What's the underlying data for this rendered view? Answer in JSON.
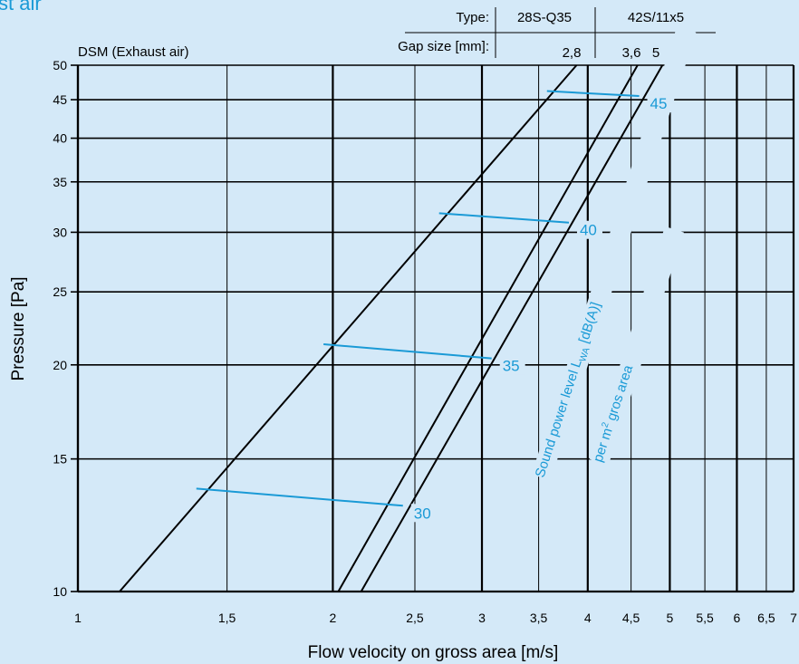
{
  "page_title_fragment": "st air",
  "header": {
    "type_label": "Type:",
    "type_values": [
      "28S-Q35",
      "42S/11x5"
    ],
    "gap_label": "Gap size [mm]:",
    "gap_values": [
      "2,8",
      "3,6",
      "5"
    ]
  },
  "chart_data": {
    "type": "line",
    "title": "DSM (Exhaust air)",
    "xlabel": "Flow velocity on gross area [m/s]",
    "ylabel": "Pressure [Pa]",
    "x_scale": "log",
    "y_scale": "log",
    "xlim": [
      1,
      7
    ],
    "ylim": [
      10,
      50
    ],
    "x_ticks": [
      1,
      1.5,
      2,
      2.5,
      3,
      3.5,
      4,
      4.5,
      5,
      5.5,
      6,
      6.5,
      7
    ],
    "x_tick_labels": [
      "1",
      "1,5",
      "2",
      "2,5",
      "3",
      "3,5",
      "4",
      "4,5",
      "5",
      "5,5",
      "6",
      "6,5",
      "7"
    ],
    "y_ticks": [
      10,
      15,
      20,
      25,
      30,
      35,
      40,
      45,
      50
    ],
    "y_tick_labels": [
      "10",
      "15",
      "20",
      "25",
      "30",
      "35",
      "40",
      "45",
      "50"
    ],
    "grid": true,
    "series": [
      {
        "name": "2,8",
        "x": [
          1.12,
          3.88
        ],
        "y": [
          10,
          50
        ]
      },
      {
        "name": "3,6",
        "x": [
          2.03,
          4.58
        ],
        "y": [
          10,
          50
        ]
      },
      {
        "name": "5",
        "x": [
          2.16,
          4.9
        ],
        "y": [
          10,
          50
        ]
      }
    ],
    "sound_power_lines": [
      {
        "label": "30",
        "x": [
          1.38,
          2.42
        ],
        "y": [
          13.7,
          13.0
        ]
      },
      {
        "label": "35",
        "x": [
          1.95,
          3.08
        ],
        "y": [
          21.3,
          20.4
        ]
      },
      {
        "label": "40",
        "x": [
          2.67,
          3.8
        ],
        "y": [
          31.8,
          30.9
        ]
      },
      {
        "label": "45",
        "x": [
          3.58,
          4.6
        ],
        "y": [
          46.2,
          45.5
        ]
      }
    ],
    "annotation_line1": "Sound power level L",
    "annotation_sub": "WA",
    "annotation_tail": " [dB(A)]",
    "annotation_line2_pre": "per m",
    "annotation_sup": "2",
    "annotation_line2_post": " gros area",
    "colors": {
      "axis": "#000000",
      "accent": "#1a9ad6",
      "background": "#d4e9f8"
    }
  }
}
